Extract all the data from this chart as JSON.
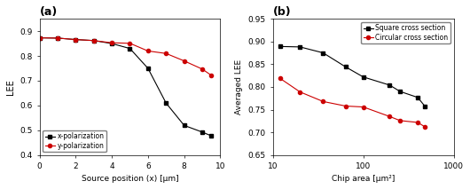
{
  "panel_a": {
    "title": "(a)",
    "xlabel": "Source position (x) [μm]",
    "ylabel": "LEE",
    "xlim": [
      0,
      10
    ],
    "ylim": [
      0.4,
      0.95
    ],
    "yticks": [
      0.4,
      0.5,
      0.6,
      0.7,
      0.8,
      0.9
    ],
    "xticks": [
      0,
      2,
      4,
      6,
      8,
      10
    ],
    "x_pol": {
      "x": [
        0,
        1,
        2,
        3,
        4,
        5,
        6,
        7,
        8,
        9,
        9.5
      ],
      "y": [
        0.873,
        0.872,
        0.866,
        0.862,
        0.85,
        0.83,
        0.75,
        0.61,
        0.52,
        0.493,
        0.478
      ],
      "color": "#000000",
      "marker": "s",
      "label": "x-polarization"
    },
    "y_pol": {
      "x": [
        0,
        1,
        2,
        3,
        4,
        5,
        6,
        7,
        8,
        9,
        9.5
      ],
      "y": [
        0.873,
        0.872,
        0.866,
        0.862,
        0.853,
        0.851,
        0.82,
        0.81,
        0.78,
        0.747,
        0.722
      ],
      "color": "#cc0000",
      "marker": "o",
      "label": "y-polarization"
    }
  },
  "panel_b": {
    "title": "(b)",
    "xlabel": "Chip area [μm²]",
    "ylabel": "Averaged LEE",
    "ylim": [
      0.65,
      0.95
    ],
    "yticks": [
      0.65,
      0.7,
      0.75,
      0.8,
      0.85,
      0.9,
      0.95
    ],
    "square": {
      "x": [
        12,
        20,
        36,
        64,
        100,
        196,
        256,
        400,
        484
      ],
      "y": [
        0.889,
        0.888,
        0.875,
        0.844,
        0.822,
        0.804,
        0.79,
        0.777,
        0.757
      ],
      "color": "#000000",
      "marker": "s",
      "label": "Square cross section"
    },
    "circular": {
      "x": [
        12,
        20,
        36,
        64,
        100,
        196,
        256,
        400,
        484
      ],
      "y": [
        0.819,
        0.789,
        0.768,
        0.758,
        0.756,
        0.735,
        0.726,
        0.722,
        0.712
      ],
      "color": "#cc0000",
      "marker": "o",
      "label": "Circular cross section"
    }
  }
}
